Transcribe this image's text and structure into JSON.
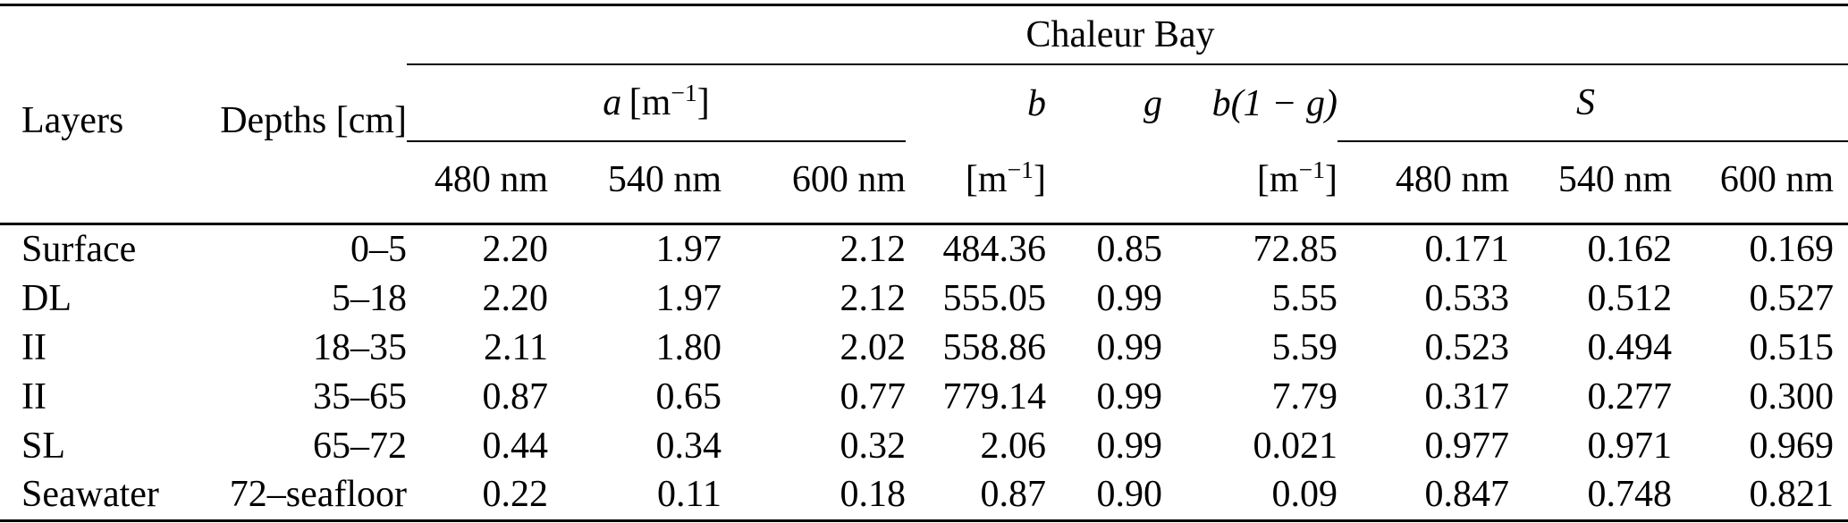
{
  "table": {
    "group_title": "Chaleur Bay",
    "header": {
      "layers": "Layers",
      "depths": "Depths [cm]",
      "a_var": "a",
      "a_unit": "[m^{−1}]",
      "b_var": "b",
      "b_unit": "[m^{−1}]",
      "g_var": "g",
      "b1g_var": "b(1 − g)",
      "b1g_unit": "[m^{−1}]",
      "s_var": "S",
      "wl_480": "480 nm",
      "wl_540": "540 nm",
      "wl_600": "600 nm"
    },
    "rows": [
      {
        "layer": "Surface",
        "depth": "0–5",
        "a480": "2.20",
        "a540": "1.97",
        "a600": "2.12",
        "b": "484.36",
        "g": "0.85",
        "b1g": "72.85",
        "s480": "0.171",
        "s540": "0.162",
        "s600": "0.169"
      },
      {
        "layer": "DL",
        "depth": "5–18",
        "a480": "2.20",
        "a540": "1.97",
        "a600": "2.12",
        "b": "555.05",
        "g": "0.99",
        "b1g": "5.55",
        "s480": "0.533",
        "s540": "0.512",
        "s600": "0.527"
      },
      {
        "layer": "II",
        "depth": "18–35",
        "a480": "2.11",
        "a540": "1.80",
        "a600": "2.02",
        "b": "558.86",
        "g": "0.99",
        "b1g": "5.59",
        "s480": "0.523",
        "s540": "0.494",
        "s600": "0.515"
      },
      {
        "layer": "II",
        "depth": "35–65",
        "a480": "0.87",
        "a540": "0.65",
        "a600": "0.77",
        "b": "779.14",
        "g": "0.99",
        "b1g": "7.79",
        "s480": "0.317",
        "s540": "0.277",
        "s600": "0.300"
      },
      {
        "layer": "SL",
        "depth": "65–72",
        "a480": "0.44",
        "a540": "0.34",
        "a600": "0.32",
        "b": "2.06",
        "g": "0.99",
        "b1g": "0.021",
        "s480": "0.977",
        "s540": "0.971",
        "s600": "0.969"
      },
      {
        "layer": "Seawater",
        "depth": "72–seafloor",
        "a480": "0.22",
        "a540": "0.11",
        "a600": "0.18",
        "b": "0.87",
        "g": "0.90",
        "b1g": "0.09",
        "s480": "0.847",
        "s540": "0.748",
        "s600": "0.821"
      }
    ]
  }
}
